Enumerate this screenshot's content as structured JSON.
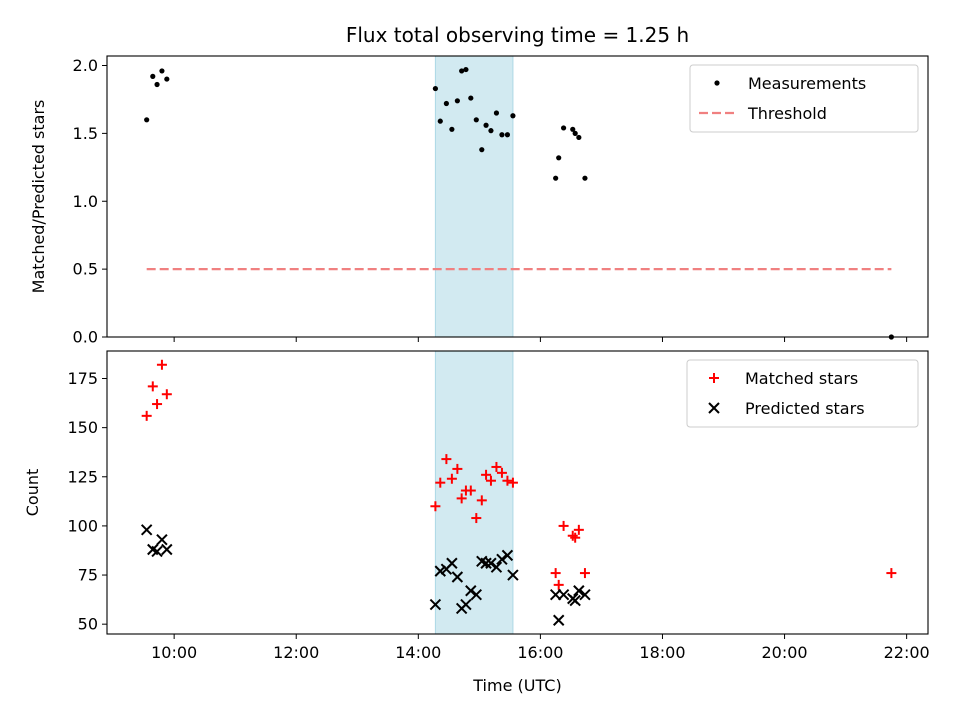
{
  "chart_data": {
    "title": "Flux total observing time = 1.25 h",
    "xlabel": "Time (UTC)",
    "x_ticks": [
      "10:00",
      "12:00",
      "14:00",
      "16:00",
      "18:00",
      "20:00",
      "22:00"
    ],
    "x_tick_hours": [
      10,
      12,
      14,
      16,
      18,
      20,
      22
    ],
    "xlim_hours": [
      8.9,
      22.35
    ],
    "shaded_span_hours": [
      14.28,
      15.55
    ],
    "shade_color": "#add8e6",
    "panels": [
      {
        "type": "scatter",
        "ylabel": "Matched/Predicted stars",
        "ylim": [
          0,
          2.07
        ],
        "y_ticks": [
          "0.0",
          "0.5",
          "1.0",
          "1.5",
          "2.0"
        ],
        "y_tick_values": [
          0,
          0.5,
          1.0,
          1.5,
          2.0
        ],
        "legend_position": "top-right",
        "series": [
          {
            "name": "Measurements",
            "marker": "dot",
            "color": "#000000",
            "x_hours": [
              9.55,
              9.65,
              9.72,
              9.8,
              9.88,
              14.28,
              14.36,
              14.46,
              14.55,
              14.64,
              14.71,
              14.78,
              14.86,
              14.95,
              15.04,
              15.11,
              15.19,
              15.28,
              15.37,
              15.46,
              15.55,
              16.25,
              16.3,
              16.38,
              16.53,
              16.57,
              16.63,
              16.73,
              21.75
            ],
            "y": [
              1.6,
              1.92,
              1.86,
              1.96,
              1.9,
              1.83,
              1.59,
              1.72,
              1.53,
              1.74,
              1.96,
              1.97,
              1.76,
              1.6,
              1.38,
              1.56,
              1.52,
              1.65,
              1.49,
              1.49,
              1.63,
              1.17,
              1.32,
              1.54,
              1.53,
              1.5,
              1.47,
              1.17,
              0.0
            ]
          },
          {
            "name": "Threshold",
            "marker": "dashed-line",
            "color": "#f08080",
            "x_hours": [
              9.55,
              21.75
            ],
            "y": [
              0.5,
              0.5
            ]
          }
        ]
      },
      {
        "type": "scatter",
        "ylabel": "Count",
        "ylim": [
          45,
          189
        ],
        "y_ticks": [
          "50",
          "75",
          "100",
          "125",
          "150",
          "175"
        ],
        "y_tick_values": [
          50,
          75,
          100,
          125,
          150,
          175
        ],
        "legend_position": "top-right",
        "series": [
          {
            "name": "Matched stars",
            "marker": "plus",
            "color": "#ff0000",
            "x_hours": [
              9.55,
              9.65,
              9.72,
              9.8,
              9.88,
              14.28,
              14.36,
              14.46,
              14.55,
              14.64,
              14.71,
              14.78,
              14.86,
              14.95,
              15.04,
              15.11,
              15.19,
              15.28,
              15.37,
              15.46,
              15.55,
              16.25,
              16.3,
              16.38,
              16.53,
              16.57,
              16.63,
              16.73,
              21.75
            ],
            "y": [
              156,
              171,
              162,
              182,
              167,
              110,
              122,
              134,
              124,
              129,
              114,
              118,
              118,
              104,
              113,
              126,
              123,
              130,
              127,
              123,
              122,
              76,
              70,
              100,
              95,
              94,
              98,
              76,
              76
            ]
          },
          {
            "name": "Predicted stars",
            "marker": "x",
            "color": "#000000",
            "x_hours": [
              9.55,
              9.65,
              9.72,
              9.8,
              9.88,
              14.28,
              14.36,
              14.46,
              14.55,
              14.64,
              14.71,
              14.78,
              14.86,
              14.95,
              15.04,
              15.11,
              15.19,
              15.28,
              15.37,
              15.46,
              15.55,
              16.25,
              16.3,
              16.38,
              16.53,
              16.57,
              16.63,
              16.73
            ],
            "y": [
              98,
              88,
              87,
              93,
              88,
              60,
              77,
              78,
              81,
              74,
              58,
              60,
              67,
              65,
              82,
              81,
              81,
              79,
              83,
              85,
              75,
              65,
              52,
              65,
              63,
              62,
              67,
              65
            ]
          }
        ]
      }
    ]
  }
}
